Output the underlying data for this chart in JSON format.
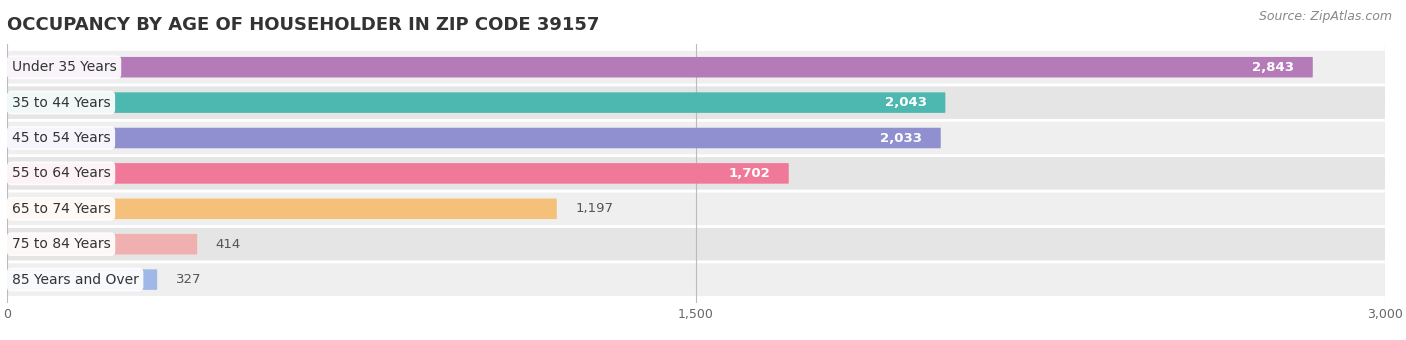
{
  "title": "OCCUPANCY BY AGE OF HOUSEHOLDER IN ZIP CODE 39157",
  "source": "Source: ZipAtlas.com",
  "categories": [
    "Under 35 Years",
    "35 to 44 Years",
    "45 to 54 Years",
    "55 to 64 Years",
    "65 to 74 Years",
    "75 to 84 Years",
    "85 Years and Over"
  ],
  "values": [
    2843,
    2043,
    2033,
    1702,
    1197,
    414,
    327
  ],
  "bar_colors": [
    "#b57ab8",
    "#4db8b0",
    "#9090d0",
    "#f07898",
    "#f5c07a",
    "#f0b0b0",
    "#a0b8e8"
  ],
  "row_bg_color": "#efefef",
  "row_alt_bg_color": "#e5e5e5",
  "background_color": "#ffffff",
  "xlim": [
    0,
    3000
  ],
  "xticks": [
    0,
    1500,
    3000
  ],
  "title_fontsize": 13,
  "label_fontsize": 10,
  "value_fontsize": 9.5,
  "source_fontsize": 9,
  "bar_height": 0.58,
  "inside_label_threshold": 1500,
  "label_color_inside": "#ffffff",
  "label_color_outside": "#555555"
}
